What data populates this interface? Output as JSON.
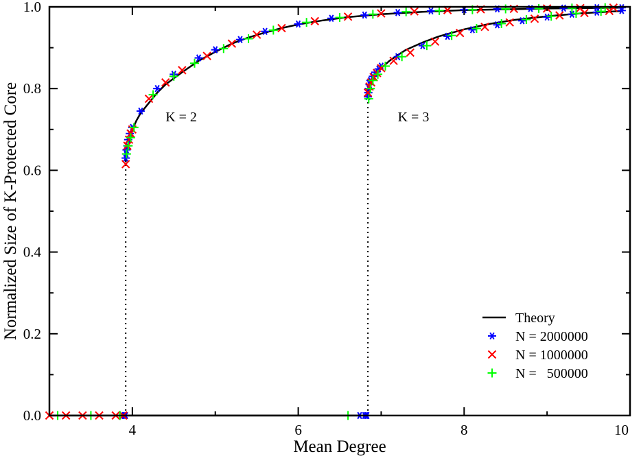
{
  "chart_data": {
    "type": "line",
    "title": "",
    "xlabel": "Mean Degree",
    "ylabel": "Normalized Size of K-Protected Core",
    "xlim": [
      3,
      10
    ],
    "ylim": [
      0,
      1
    ],
    "x_ticks": [
      4,
      6,
      8,
      10
    ],
    "y_ticks": [
      0.0,
      0.2,
      0.4,
      0.6,
      0.8,
      1.0
    ],
    "x_tick_labels": [
      "4",
      "6",
      "8",
      "10"
    ],
    "y_tick_labels": [
      "0.0",
      "0.2",
      "0.4",
      "0.6",
      "0.8",
      "1.0"
    ],
    "grid": false,
    "legend_position": "bottom-right",
    "annotations": [
      {
        "text": "K = 2",
        "x": 4.4,
        "y": 0.72
      },
      {
        "text": "K = 3",
        "x": 7.2,
        "y": 0.72
      }
    ],
    "transitions": [
      {
        "x": 3.92,
        "y": 0.62
      },
      {
        "x": 6.84,
        "y": 0.78
      }
    ],
    "series": [
      {
        "name": "Theory",
        "marker": "line",
        "color": "#000000",
        "segments": [
          {
            "x": [
              3.0,
              3.92
            ],
            "y": [
              0.0,
              0.0
            ]
          },
          {
            "x": [
              3.92,
              3.93,
              3.95,
              3.97,
              4.0,
              4.05,
              4.1,
              4.2,
              4.3,
              4.4,
              4.5,
              4.6,
              4.8,
              5.0,
              5.2,
              5.4,
              5.6,
              5.8,
              6.0,
              6.3,
              6.6,
              7.0,
              7.5,
              8.0,
              8.5,
              9.0,
              9.5,
              9.9
            ],
            "y": [
              0.62,
              0.645,
              0.665,
              0.68,
              0.7,
              0.722,
              0.74,
              0.765,
              0.79,
              0.81,
              0.825,
              0.84,
              0.868,
              0.89,
              0.91,
              0.925,
              0.937,
              0.948,
              0.957,
              0.967,
              0.975,
              0.982,
              0.988,
              0.992,
              0.994,
              0.996,
              0.997,
              0.998
            ]
          },
          {
            "x": [
              3.92,
              6.84
            ],
            "y": [
              0.0,
              0.0
            ]
          },
          {
            "x": [
              6.84,
              6.85,
              6.87,
              6.9,
              6.94,
              7.0,
              7.1,
              7.2,
              7.3,
              7.5,
              7.7,
              8.0,
              8.3,
              8.6,
              9.0,
              9.4,
              9.9
            ],
            "y": [
              0.78,
              0.795,
              0.81,
              0.822,
              0.835,
              0.85,
              0.868,
              0.882,
              0.895,
              0.913,
              0.928,
              0.945,
              0.958,
              0.968,
              0.977,
              0.984,
              0.99
            ]
          }
        ]
      },
      {
        "name": "N = 2000000",
        "marker": "asterisk",
        "color": "#0000ff",
        "x": [
          3.9,
          3.91,
          3.92,
          3.92,
          3.925,
          3.93,
          3.94,
          3.95,
          3.97,
          4.0,
          4.1,
          4.3,
          4.5,
          4.8,
          5.0,
          5.3,
          5.6,
          6.0,
          6.4,
          6.8,
          7.2,
          7.6,
          8.0,
          8.4,
          8.8,
          9.2,
          9.6,
          9.9,
          6.74,
          6.8,
          6.82,
          6.83,
          6.84,
          6.845,
          6.85,
          6.86,
          6.87,
          6.9,
          6.93,
          6.97,
          7.0,
          7.2,
          7.5,
          7.8,
          8.1,
          8.4,
          8.7,
          9.0,
          9.3,
          9.6,
          9.9
        ],
        "y": [
          0.0,
          0.0,
          0.0,
          0.63,
          0.64,
          0.65,
          0.66,
          0.675,
          0.69,
          0.705,
          0.745,
          0.8,
          0.835,
          0.875,
          0.895,
          0.92,
          0.94,
          0.958,
          0.972,
          0.98,
          0.986,
          0.99,
          0.993,
          0.995,
          0.996,
          0.997,
          0.998,
          0.998,
          0.0,
          0.0,
          0.0,
          0.0,
          0.78,
          0.79,
          0.8,
          0.81,
          0.82,
          0.83,
          0.84,
          0.848,
          0.855,
          0.878,
          0.905,
          0.928,
          0.944,
          0.956,
          0.966,
          0.975,
          0.982,
          0.987,
          0.991
        ]
      },
      {
        "name": "N = 1000000",
        "marker": "x",
        "color": "#ff0000",
        "x": [
          3.0,
          3.2,
          3.4,
          3.6,
          3.8,
          3.89,
          3.92,
          3.94,
          3.96,
          3.98,
          4.0,
          4.2,
          4.4,
          4.6,
          4.9,
          5.2,
          5.5,
          5.8,
          6.2,
          6.6,
          7.0,
          7.4,
          7.8,
          8.2,
          8.6,
          9.0,
          9.4,
          9.8,
          6.84,
          6.86,
          6.88,
          6.91,
          6.95,
          7.0,
          7.15,
          7.35,
          7.65,
          7.95,
          8.25,
          8.55,
          8.85,
          9.15,
          9.45,
          9.75
        ],
        "y": [
          0.0,
          0.0,
          0.0,
          0.0,
          0.0,
          0.0,
          0.615,
          0.66,
          0.675,
          0.69,
          0.7,
          0.775,
          0.815,
          0.845,
          0.88,
          0.91,
          0.932,
          0.948,
          0.965,
          0.976,
          0.984,
          0.989,
          0.992,
          0.994,
          0.995,
          0.996,
          0.997,
          0.998,
          0.79,
          0.805,
          0.815,
          0.828,
          0.838,
          0.85,
          0.868,
          0.888,
          0.915,
          0.936,
          0.951,
          0.962,
          0.971,
          0.979,
          0.985,
          0.99
        ]
      },
      {
        "name": "N =   500000",
        "marker": "plus",
        "color": "#00ff00",
        "x": [
          3.1,
          3.5,
          3.85,
          3.93,
          3.95,
          3.98,
          4.02,
          4.25,
          4.5,
          4.75,
          5.1,
          5.4,
          5.7,
          6.1,
          6.5,
          6.9,
          7.3,
          7.7,
          8.1,
          8.5,
          8.9,
          9.3,
          9.7,
          6.6,
          6.85,
          6.87,
          6.9,
          6.96,
          7.05,
          7.25,
          7.55,
          7.85,
          8.15,
          8.45,
          8.75,
          9.05,
          9.35,
          9.65
        ],
        "y": [
          0.0,
          0.0,
          0.0,
          0.64,
          0.66,
          0.68,
          0.705,
          0.785,
          0.83,
          0.862,
          0.898,
          0.922,
          0.943,
          0.962,
          0.974,
          0.982,
          0.988,
          0.991,
          0.993,
          0.995,
          0.996,
          0.997,
          0.998,
          0.0,
          0.775,
          0.8,
          0.82,
          0.835,
          0.855,
          0.878,
          0.905,
          0.93,
          0.947,
          0.959,
          0.969,
          0.977,
          0.984,
          0.989
        ]
      }
    ]
  }
}
